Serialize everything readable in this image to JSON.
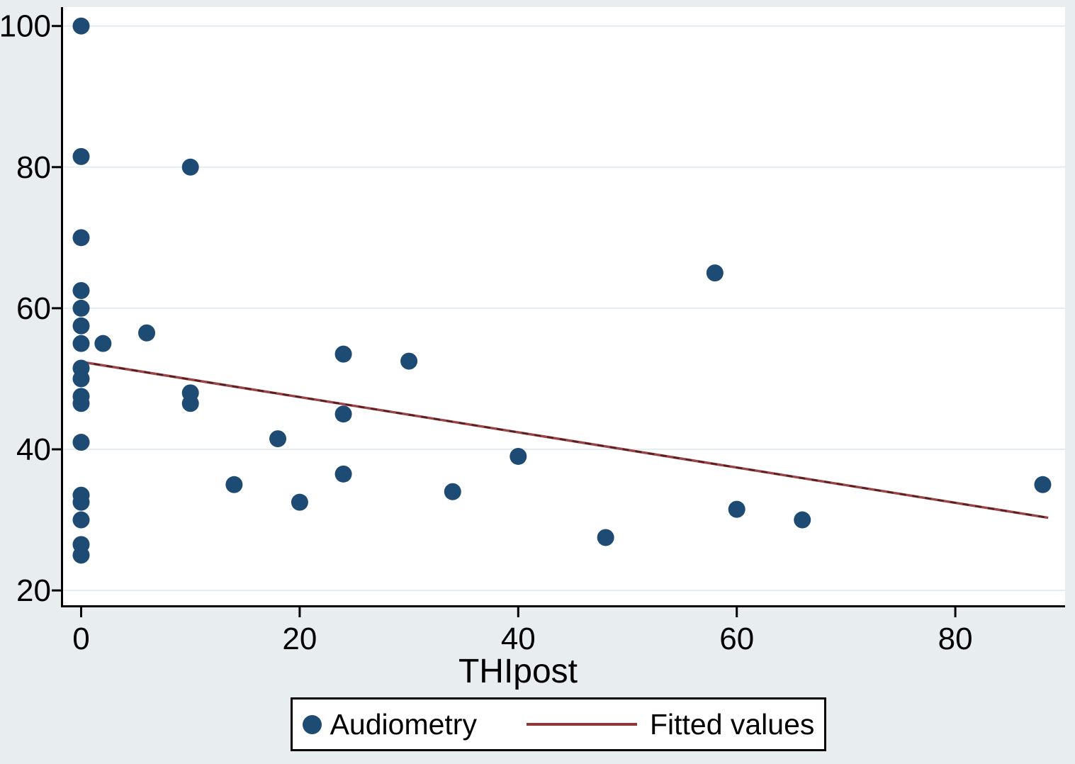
{
  "chart_data": {
    "type": "scatter",
    "title": "",
    "xlabel": "THIpost",
    "ylabel": "",
    "xlim": [
      -2,
      90
    ],
    "ylim": [
      17,
      102
    ],
    "xticks": [
      0,
      20,
      40,
      60,
      80
    ],
    "yticks": [
      20,
      40,
      60,
      80,
      100
    ],
    "grid": "horizontal",
    "series": [
      {
        "name": "Audiometry",
        "type": "scatter",
        "points": [
          [
            0,
            100
          ],
          [
            0,
            81.5
          ],
          [
            0,
            70
          ],
          [
            0,
            62.5
          ],
          [
            0,
            60
          ],
          [
            0,
            57.5
          ],
          [
            0,
            55
          ],
          [
            2,
            55
          ],
          [
            6,
            56.5
          ],
          [
            10,
            80
          ],
          [
            0,
            51.5
          ],
          [
            0,
            50
          ],
          [
            0,
            47.5
          ],
          [
            0,
            46.5
          ],
          [
            10,
            48
          ],
          [
            10,
            46.5
          ],
          [
            0,
            41
          ],
          [
            18,
            41.5
          ],
          [
            24,
            53.5
          ],
          [
            30,
            52.5
          ],
          [
            24,
            45
          ],
          [
            24,
            36.5
          ],
          [
            20,
            32.5
          ],
          [
            34,
            34
          ],
          [
            14,
            35
          ],
          [
            0,
            33.5
          ],
          [
            0,
            32.5
          ],
          [
            0,
            30
          ],
          [
            0,
            26.5
          ],
          [
            0,
            25
          ],
          [
            40,
            39
          ],
          [
            48,
            27.5
          ],
          [
            58,
            65
          ],
          [
            60,
            31.5
          ],
          [
            66,
            30
          ],
          [
            88,
            35
          ]
        ]
      },
      {
        "name": "Fitted values",
        "type": "line",
        "points": [
          [
            0,
            52.4
          ],
          [
            88.5,
            30.3
          ]
        ]
      }
    ],
    "legend": {
      "position": "bottom",
      "entries": [
        "Audiometry",
        "Fitted values"
      ]
    },
    "colors": {
      "marker": "#1e4b73",
      "fitted_line": "#9a4548",
      "fitted_line_dash": "#571d1f",
      "grid": "#e4edf2",
      "axis": "#000000",
      "plot_bg": "#ffffff",
      "outer_bg": "#e8edf0"
    }
  }
}
